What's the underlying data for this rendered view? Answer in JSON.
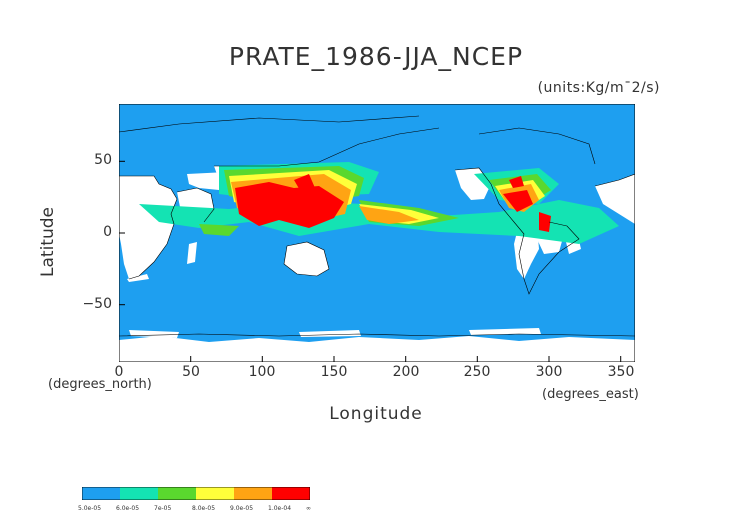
{
  "title": "PRATE_1986-JJA_NCEP",
  "units": "(units:Kg/m¯2/s)",
  "axes": {
    "xlabel": "Longitude",
    "ylabel": "Latitude",
    "x_unit": "(degrees_east)",
    "y_unit": "(degrees_north)",
    "xticks": [
      "0",
      "50",
      "100",
      "150",
      "200",
      "250",
      "300",
      "350"
    ],
    "yticks": [
      "50",
      "0",
      "−50"
    ],
    "xlim": [
      0,
      360
    ],
    "ylim": [
      -90,
      90
    ]
  },
  "colorbar": {
    "labels": [
      "5.0e-05",
      "6.0e-05",
      "7e-05",
      "8.0e-05",
      "9.0e-05",
      "1.0e-04",
      "∞"
    ],
    "colors": [
      "#1e9ff0",
      "#14e3b3",
      "#5ad82e",
      "#ffff3a",
      "#ffa413",
      "#ff0000"
    ]
  },
  "colors": {
    "ocean": "#1e9ff0",
    "below_threshold": "#ffffff"
  }
}
